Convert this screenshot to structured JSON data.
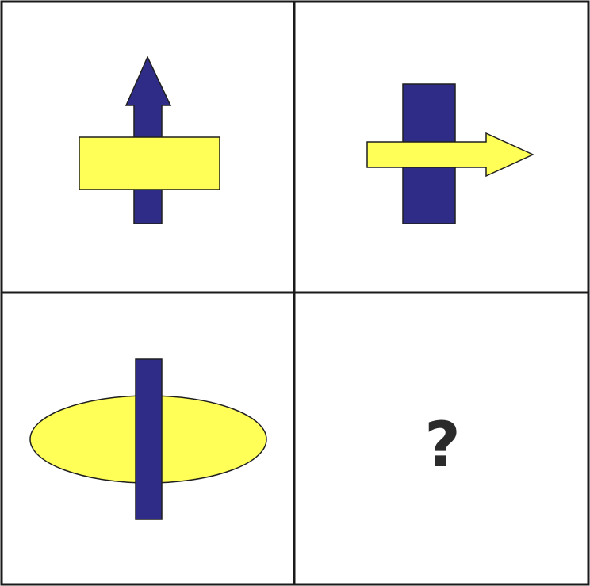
{
  "puzzle": {
    "missing_cell_symbol": "?"
  },
  "colors": {
    "navy": "#2e2c86",
    "yellow": "#ffff57",
    "outline": "#1f1f1f",
    "grid_line": "#1a1a1a",
    "background": "#ffffff"
  },
  "cells": [
    {
      "position": "top-left",
      "content": [
        "navy-up-arrow",
        "yellow-horizontal-rectangle"
      ],
      "front": "yellow-horizontal-rectangle"
    },
    {
      "position": "top-right",
      "content": [
        "navy-vertical-rectangle",
        "yellow-right-arrow"
      ],
      "front": "yellow-right-arrow"
    },
    {
      "position": "bottom-left",
      "content": [
        "yellow-ellipse",
        "navy-vertical-bar"
      ],
      "front": "navy-vertical-bar"
    },
    {
      "position": "bottom-right",
      "content": [
        "question-mark"
      ]
    }
  ]
}
